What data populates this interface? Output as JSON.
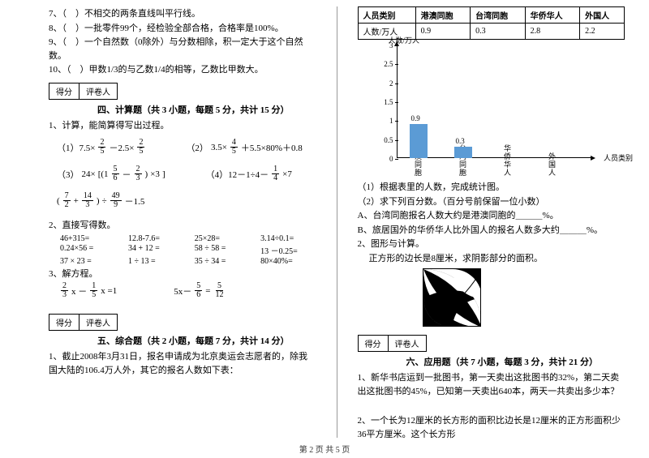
{
  "left": {
    "judgments": [
      "7、（　）不相交的两条直线叫平行线。",
      "8、（　）一批零件99个，经检验全部合格，合格率是100%。",
      "9、（　）一个自然数（0除外）与分数相除，积一定大于这个自然数。",
      "10、（　）甲数1/3的与乙数1/4的相等，乙数比甲数大。"
    ],
    "score_labels": [
      "得分",
      "评卷人"
    ],
    "sec4_title": "四、计算题（共 3 小题，每题 5 分，共计 15 分）",
    "q1_intro": "1、计算，能简算得写出过程。",
    "m1_label": "（1）7.5×",
    "m1_mid": "－2.5×",
    "m2_label": "（2）",
    "m2_expr_a": "3.5×",
    "m2_expr_b": "＋5.5×80%＋0.8",
    "m3_label": "（3）",
    "m3_pre": "24×",
    "m3_post": "×3",
    "m4_label": "（4）12－1÷4－",
    "m4_tail": "×7",
    "m5_expr": "÷",
    "m5_tail": "－1.5",
    "q2_intro": "2、直接写得数。",
    "calc_grid": [
      "46+315=",
      "12.8-7.6=",
      "25×28=",
      "3.14÷0.1=",
      "0.24×56 =",
      "34 + 12 =",
      "58 ÷ 58 =",
      "13 －0.25=",
      "37 × 23 =",
      "1 ÷ 13 =",
      "35 ÷ 34 =",
      "80×40%="
    ],
    "q3_intro": "3、解方程。",
    "eq1": "x －",
    "eq1b": "x =1",
    "eq2": "5x－",
    "sec5_title": "五、综合题（共 2 小题，每题 7 分，共计 14 分）",
    "q5_1": "1、截止2008年3月31日，报名申请成为北京奥运会志愿者的，除我国大陆的106.4万人外，其它的报名人数如下表："
  },
  "right": {
    "table": {
      "headers": [
        "人员类别",
        "港澳同胞",
        "台湾同胞",
        "华侨华人",
        "外国人"
      ],
      "row_label": "人数/万人",
      "row": [
        "0.9",
        "0.3",
        "2.8",
        "2.2"
      ]
    },
    "chart": {
      "y_label": "人数/万人",
      "x_label": "人员类别",
      "yticks": [
        "0",
        "0.5",
        "1",
        "1.5",
        "2",
        "2.5",
        "3"
      ],
      "ymax": 3,
      "categories": [
        "港澳同胞",
        "台湾同胞",
        "华侨华人",
        "外国人"
      ],
      "values": [
        0.9,
        0.3,
        null,
        null
      ],
      "value_labels": [
        "0.9",
        "0.3",
        "",
        ""
      ],
      "bar_color": "#5b9bd5"
    },
    "sub_q": [
      "（1）根据表里的人数，完成统计图。",
      "（2）求下列百分数。（百分号前保留一位小数）",
      "A、台湾同胞报名人数大约是港澳同胞的＿＿＿%。",
      "B、旅居国外的华侨华人比外国人的报名人数多大约＿＿＿%。"
    ],
    "q2_intro": "2、图形与计算。",
    "q2_text": "正方形的边长是8厘米，求阴影部分的面积。",
    "sec6_title": "六、应用题（共 7 小题，每题 3 分，共计 21 分）",
    "app_q1": "1、新华书店运到一批图书，第一天卖出这批图书的32%，第二天卖出这批图书的45%，已知第一天卖出640本，两天一共卖出多少本？",
    "app_q2": "2、一个长为12厘米的长方形的面积比边长是12厘米的正方形面积少36平方厘米。这个长方形"
  },
  "footer": "第 2 页 共 5 页"
}
